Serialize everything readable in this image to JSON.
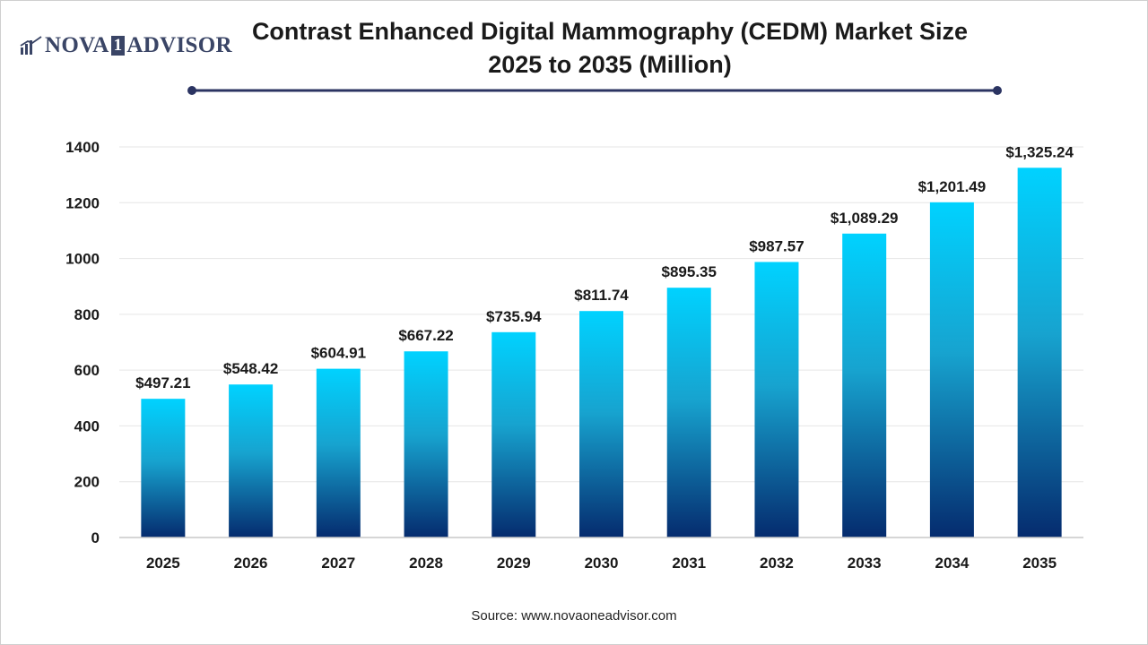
{
  "brand": {
    "name_left": "NOVA",
    "name_box": "1",
    "name_right": "ADVISOR",
    "colors": {
      "primary": "#3a4566",
      "line": "#2b3462"
    }
  },
  "header": {
    "title_line1": "Contrast Enhanced Digital Mammography (CEDM) Market Size",
    "title_line2": "2025 to 2035 (Million)"
  },
  "footer": {
    "source": "Source: www.novaoneadvisor.com"
  },
  "chart_data": {
    "type": "bar",
    "title": "Contrast Enhanced Digital Mammography (CEDM) Market Size 2025 to 2035 (Million)",
    "categories": [
      "2025",
      "2026",
      "2027",
      "2028",
      "2029",
      "2030",
      "2031",
      "2032",
      "2033",
      "2034",
      "2035"
    ],
    "values": [
      497.21,
      548.42,
      604.91,
      667.22,
      735.94,
      811.74,
      895.35,
      987.57,
      1089.29,
      1201.49,
      1325.24
    ],
    "value_labels": [
      "$497.21",
      "$548.42",
      "$604.91",
      "$667.22",
      "$735.94",
      "$811.74",
      "$895.35",
      "$987.57",
      "$1,089.29",
      "$1,201.49",
      "$1,325.24"
    ],
    "yticks": [
      0,
      200,
      400,
      600,
      800,
      1000,
      1200,
      1400
    ],
    "ylim": [
      0,
      1400
    ],
    "grid": true,
    "legend": "none",
    "bar_gradient": {
      "top": "#00d2ff",
      "middle": "#17a3cf",
      "bottom": "#052b6e"
    }
  }
}
